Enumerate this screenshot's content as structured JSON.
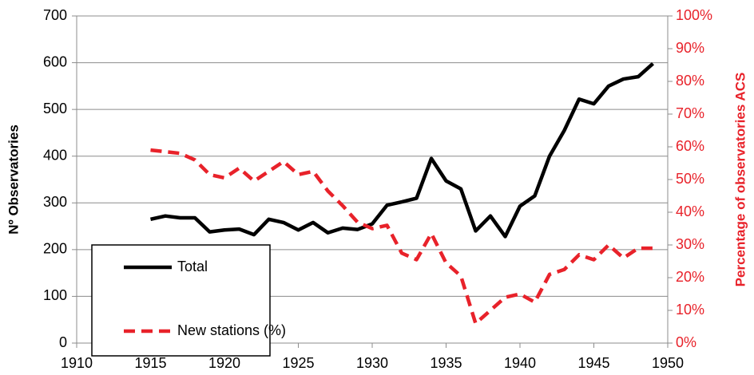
{
  "chart_data": {
    "type": "line",
    "y_label": "Nº Observatories",
    "y2_label": "Percentage of observatories ACS",
    "x": [
      1915,
      1916,
      1917,
      1918,
      1919,
      1920,
      1921,
      1922,
      1923,
      1924,
      1925,
      1926,
      1927,
      1928,
      1929,
      1930,
      1931,
      1932,
      1933,
      1934,
      1935,
      1936,
      1937,
      1938,
      1939,
      1940,
      1941,
      1942,
      1943,
      1944,
      1945,
      1946,
      1947,
      1948,
      1949
    ],
    "series": [
      {
        "name": "Total",
        "color": "#000000",
        "line_style": "solid",
        "axis": "y",
        "values": [
          265,
          272,
          268,
          268,
          238,
          242,
          244,
          232,
          265,
          258,
          242,
          258,
          236,
          246,
          243,
          255,
          295,
          302,
          310,
          395,
          347,
          330,
          240,
          272,
          228,
          293,
          315,
          400,
          455,
          522,
          512,
          550,
          565,
          570,
          598
        ]
      },
      {
        "name": "New stations (%)",
        "color": "#e8222a",
        "line_style": "dashed",
        "axis": "y2",
        "values": [
          59,
          58.5,
          58,
          56,
          51.5,
          50.5,
          53.5,
          49.5,
          52.5,
          55.5,
          51.5,
          52.5,
          46.5,
          42,
          37,
          35,
          36,
          27.5,
          25.5,
          33.5,
          24.5,
          20.5,
          6,
          10,
          14,
          15,
          12.5,
          21,
          22.5,
          27,
          25.5,
          30,
          26,
          29,
          29
        ]
      }
    ],
    "xlim": [
      1910,
      1950
    ],
    "xticks": [
      1910,
      1915,
      1920,
      1925,
      1930,
      1935,
      1940,
      1945,
      1950
    ],
    "ylim": [
      0,
      700
    ],
    "yticks": [
      0,
      100,
      200,
      300,
      400,
      500,
      600,
      700
    ],
    "y2lim": [
      0,
      100
    ],
    "y2ticks": [
      {
        "value": 0,
        "label": "0%"
      },
      {
        "value": 10,
        "label": "10%"
      },
      {
        "value": 20,
        "label": "20%"
      },
      {
        "value": 30,
        "label": "30%"
      },
      {
        "value": 40,
        "label": "40%"
      },
      {
        "value": 50,
        "label": "50%"
      },
      {
        "value": 60,
        "label": "60%"
      },
      {
        "value": 70,
        "label": "70%"
      },
      {
        "value": 80,
        "label": "80%"
      },
      {
        "value": 90,
        "label": "90%"
      },
      {
        "value": 100,
        "label": "100%"
      }
    ],
    "grid": true,
    "legend": "lower left"
  }
}
